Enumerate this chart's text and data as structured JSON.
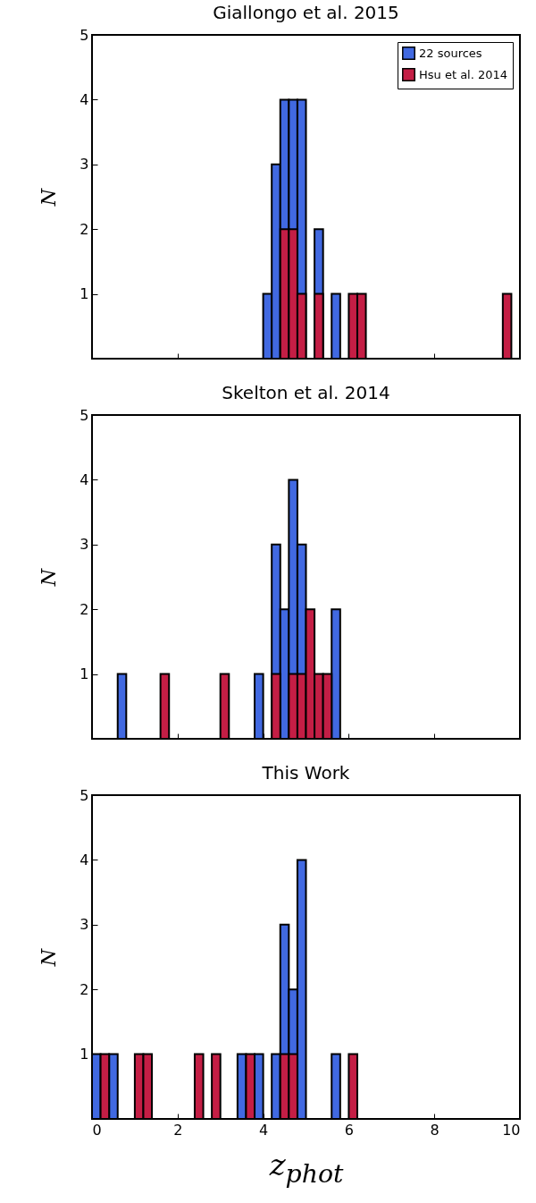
{
  "chart_data": [
    {
      "type": "histogram",
      "title": "Giallongo et al. 2015",
      "ylabel": "N",
      "bins": [
        0,
        0.2,
        0.4,
        0.6,
        0.8,
        1,
        1.2,
        1.4,
        1.6,
        1.8,
        2,
        2.2,
        2.4,
        2.6,
        2.8,
        3,
        3.2,
        3.4,
        3.6,
        3.8,
        4,
        4.2,
        4.4,
        4.6,
        4.8,
        5,
        5.2,
        5.4,
        5.6,
        5.8,
        6,
        6.2,
        6.4,
        6.6,
        6.8,
        7,
        7.2,
        7.4,
        7.6,
        7.8,
        8,
        8.2,
        8.4,
        8.6,
        8.8,
        9,
        9.2,
        9.4,
        9.6,
        9.8,
        10
      ],
      "series": [
        {
          "name": "22 sources",
          "color": "#4169e1",
          "values": [
            0,
            0,
            0,
            0,
            0,
            0,
            0,
            0,
            0,
            0,
            0,
            0,
            0,
            0,
            0,
            0,
            0,
            0,
            0,
            0,
            1,
            3,
            4,
            4,
            4,
            0,
            2,
            0,
            1,
            0,
            null,
            null,
            0,
            0,
            0,
            0,
            0,
            0,
            0,
            0,
            0,
            0,
            0,
            0,
            0,
            0,
            0,
            0,
            null,
            0
          ]
        },
        {
          "name": "Hsu et al. 2014",
          "color": "#c41e45",
          "values": [
            0,
            0,
            0,
            0,
            0,
            0,
            0,
            0,
            0,
            0,
            0,
            0,
            0,
            0,
            0,
            0,
            0,
            0,
            0,
            0,
            0,
            0,
            2,
            2,
            1,
            0,
            1,
            0,
            0,
            0,
            1,
            1,
            0,
            0,
            0,
            0,
            0,
            0,
            0,
            0,
            0,
            0,
            0,
            0,
            0,
            0,
            0,
            0,
            1,
            0
          ]
        }
      ],
      "xlim": [
        0,
        10
      ],
      "xticks": [
        0,
        2,
        4,
        6,
        8,
        10
      ],
      "ylim": [
        0,
        5
      ],
      "yticks": [
        1,
        2,
        3,
        4,
        5
      ],
      "tick_labels": "y",
      "legend": "top right",
      "grid": false
    },
    {
      "type": "histogram",
      "title": "Skelton et al. 2014",
      "ylabel": "N",
      "bins": [
        0,
        0.2,
        0.4,
        0.6,
        0.8,
        1,
        1.2,
        1.4,
        1.6,
        1.8,
        2,
        2.2,
        2.4,
        2.6,
        2.8,
        3,
        3.2,
        3.4,
        3.6,
        3.8,
        4,
        4.2,
        4.4,
        4.6,
        4.8,
        5,
        5.2,
        5.4,
        5.6,
        5.8,
        6,
        6.2,
        6.4,
        6.6,
        6.8,
        7,
        7.2,
        7.4,
        7.6,
        7.8,
        8,
        8.2,
        8.4,
        8.6,
        8.8,
        9,
        9.2,
        9.4,
        9.6,
        9.8,
        10
      ],
      "series": [
        {
          "name": "22 sources",
          "color": "#4169e1",
          "values": [
            0,
            0,
            0,
            1,
            0,
            0,
            0,
            0,
            null,
            0,
            0,
            0,
            0,
            0,
            0,
            null,
            0,
            0,
            0,
            1,
            0,
            3,
            2,
            4,
            3,
            null,
            null,
            null,
            2,
            0,
            0,
            0,
            0,
            0,
            0,
            0,
            0,
            0,
            0,
            0,
            0,
            0,
            0,
            0,
            0,
            0,
            0,
            0,
            0,
            0
          ]
        },
        {
          "name": "Hsu et al. 2014",
          "color": "#c41e45",
          "values": [
            0,
            0,
            0,
            0,
            0,
            0,
            0,
            0,
            1,
            0,
            0,
            0,
            0,
            0,
            0,
            1,
            0,
            0,
            0,
            0,
            0,
            1,
            0,
            1,
            1,
            2,
            1,
            1,
            0,
            0,
            0,
            0,
            0,
            0,
            0,
            0,
            0,
            0,
            0,
            0,
            0,
            0,
            0,
            0,
            0,
            0,
            0,
            0,
            0,
            0
          ]
        }
      ],
      "xlim": [
        0,
        10
      ],
      "xticks": [
        0,
        2,
        4,
        6,
        8,
        10
      ],
      "ylim": [
        0,
        5
      ],
      "yticks": [
        1,
        2,
        3,
        4,
        5
      ],
      "tick_labels": "y",
      "legend": "top right",
      "grid": false
    },
    {
      "type": "histogram",
      "title": "This Work",
      "ylabel": "N",
      "xlabel": "z$_{phot}$",
      "bins": [
        0,
        0.2,
        0.4,
        0.6,
        0.8,
        1,
        1.2,
        1.4,
        1.6,
        1.8,
        2,
        2.2,
        2.4,
        2.6,
        2.8,
        3,
        3.2,
        3.4,
        3.6,
        3.8,
        4,
        4.2,
        4.4,
        4.6,
        4.8,
        5,
        5.2,
        5.4,
        5.6,
        5.8,
        6,
        6.2,
        6.4,
        6.6,
        6.8,
        7,
        7.2,
        7.4,
        7.6,
        7.8,
        8,
        8.2,
        8.4,
        8.6,
        8.8,
        9,
        9.2,
        9.4,
        9.6,
        9.8,
        10
      ],
      "series": [
        {
          "name": "22 sources",
          "color": "#4169e1",
          "values": [
            1,
            null,
            1,
            0,
            0,
            null,
            null,
            0,
            0,
            0,
            0,
            0,
            null,
            0,
            null,
            0,
            0,
            1,
            null,
            1,
            0,
            1,
            3,
            2,
            4,
            0,
            0,
            0,
            1,
            0,
            null,
            0,
            0,
            0,
            0,
            0,
            0,
            0,
            0,
            0,
            0,
            0,
            0,
            0,
            0,
            0,
            0,
            0,
            0,
            0
          ]
        },
        {
          "name": "Hsu et al. 2014",
          "color": "#c41e45",
          "values": [
            0,
            1,
            0,
            0,
            0,
            1,
            1,
            0,
            0,
            0,
            0,
            0,
            1,
            0,
            1,
            0,
            0,
            0,
            1,
            0,
            0,
            0,
            1,
            1,
            0,
            0,
            0,
            0,
            0,
            0,
            1,
            0,
            0,
            0,
            0,
            0,
            0,
            0,
            0,
            0,
            0,
            0,
            0,
            0,
            0,
            0,
            0,
            0,
            0,
            0
          ]
        }
      ],
      "xlim": [
        0,
        10
      ],
      "xticks": [
        0,
        2,
        4,
        6,
        8,
        10
      ],
      "ylim": [
        0,
        5
      ],
      "yticks": [
        1,
        2,
        3,
        4,
        5
      ],
      "legend": "top right",
      "grid": false
    }
  ]
}
